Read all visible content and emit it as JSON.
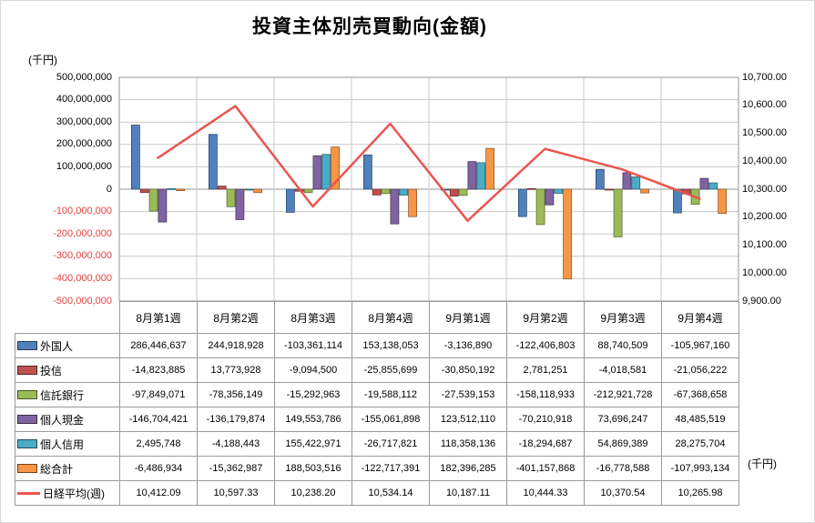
{
  "title": "投資主体別売買動向(金額)",
  "axis_unit_left": "(千円)",
  "axis_unit_right": "(千円)",
  "palette": {
    "grid": "#c9c9c9",
    "plot_border": "#959595",
    "table_border": "#9a9a9a",
    "negative_tick": "#e84040",
    "text": "#000000"
  },
  "chart_data": {
    "type": "bar",
    "combo": "bar+line",
    "title": "投資主体別売買動向(金額)",
    "categories": [
      "8月第1週",
      "8月第2週",
      "8月第3週",
      "8月第4週",
      "9月第1週",
      "9月第2週",
      "9月第3週",
      "9月第4週"
    ],
    "left_axis": {
      "min": -500000000,
      "max": 500000000,
      "step": 100000000,
      "unit": "(千円)"
    },
    "right_axis": {
      "min": 9900,
      "max": 10700,
      "step": 100,
      "format": "2dp"
    },
    "grid": true,
    "legend_position": "table-left",
    "series": [
      {
        "name": "外国人",
        "type": "bar",
        "color": "#4F81BD",
        "values": [
          286446637,
          244918928,
          -103361114,
          153138053,
          -3136890,
          -122406803,
          88740509,
          -105967160
        ]
      },
      {
        "name": "投信",
        "type": "bar",
        "color": "#C0504D",
        "values": [
          -14823885,
          13773928,
          -9094500,
          -25855699,
          -30850192,
          2781251,
          -4018581,
          -21056222
        ]
      },
      {
        "name": "信託銀行",
        "type": "bar",
        "color": "#9BBB59",
        "values": [
          -97849071,
          -78356149,
          -15292963,
          -19588112,
          -27539153,
          -158118933,
          -212921728,
          -67368658
        ]
      },
      {
        "name": "個人現金",
        "type": "bar",
        "color": "#8064A2",
        "values": [
          -146704421,
          -136179874,
          149553786,
          -155061898,
          123512110,
          -70210918,
          73696247,
          48485519
        ]
      },
      {
        "name": "個人信用",
        "type": "bar",
        "color": "#4BACC6",
        "values": [
          2495748,
          -4188443,
          155422971,
          -26717821,
          118358136,
          -18294687,
          54869389,
          28275704
        ]
      },
      {
        "name": "総合計",
        "type": "bar",
        "color": "#F79646",
        "values": [
          -6486934,
          -15362987,
          188503516,
          -122717391,
          182396285,
          -401157868,
          -16778588,
          -107993134
        ]
      },
      {
        "name": "日経平均(週)",
        "type": "line",
        "axis": "right",
        "color": "#EA5550",
        "values": [
          10412.09,
          10597.33,
          10238.2,
          10534.14,
          10187.11,
          10444.33,
          10370.54,
          10265.98
        ]
      }
    ]
  }
}
